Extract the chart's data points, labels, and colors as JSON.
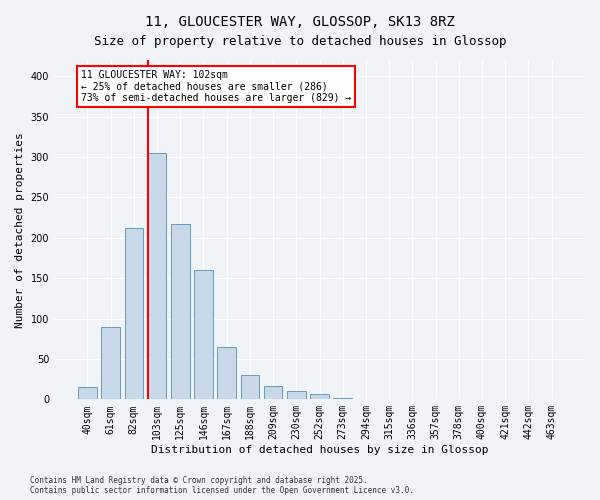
{
  "title1": "11, GLOUCESTER WAY, GLOSSOP, SK13 8RZ",
  "title2": "Size of property relative to detached houses in Glossop",
  "xlabel": "Distribution of detached houses by size in Glossop",
  "ylabel": "Number of detached properties",
  "bar_color": "#c8d8e8",
  "bar_edge_color": "#6699bb",
  "vline_color": "red",
  "vline_x": 3,
  "categories": [
    "40sqm",
    "61sqm",
    "82sqm",
    "103sqm",
    "125sqm",
    "146sqm",
    "167sqm",
    "188sqm",
    "209sqm",
    "230sqm",
    "252sqm",
    "273sqm",
    "294sqm",
    "315sqm",
    "336sqm",
    "357sqm",
    "378sqm",
    "400sqm",
    "421sqm",
    "442sqm",
    "463sqm"
  ],
  "values": [
    15,
    90,
    212,
    305,
    217,
    160,
    65,
    30,
    17,
    10,
    6,
    2,
    1,
    1,
    0,
    0,
    0,
    0,
    0,
    0,
    0
  ],
  "ylim": [
    0,
    420
  ],
  "annotation_text": "11 GLOUCESTER WAY: 102sqm\n← 25% of detached houses are smaller (286)\n73% of semi-detached houses are larger (829) →",
  "annotation_box_color": "white",
  "annotation_box_edge_color": "red",
  "footnote": "Contains HM Land Registry data © Crown copyright and database right 2025.\nContains public sector information licensed under the Open Government Licence v3.0.",
  "bg_color": "#f0f4f8",
  "grid_color": "white"
}
